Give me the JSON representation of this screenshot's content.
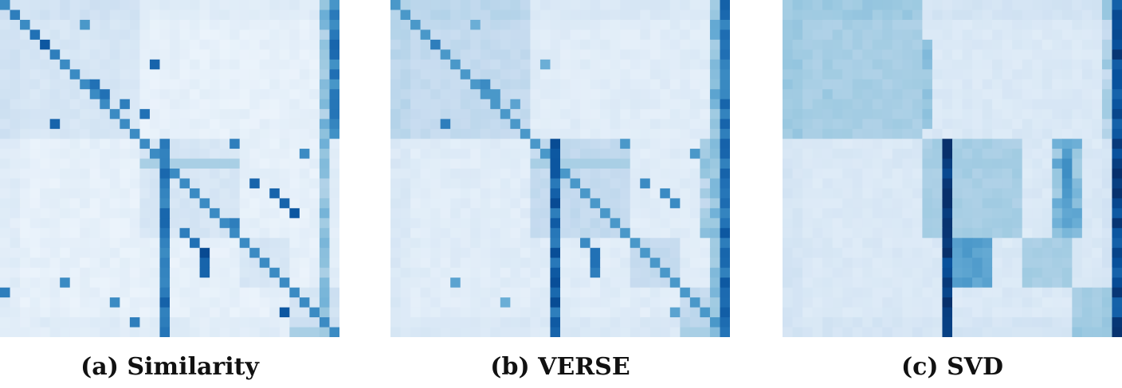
{
  "figure": {
    "captions": [
      "(a) Similarity",
      "(b) VERSE",
      "(c) SVD"
    ]
  },
  "chart_data": [
    {
      "type": "heatmap",
      "title": "(a) Similarity",
      "n": 34,
      "colormap": "Blues",
      "ylim": [
        0,
        1
      ],
      "grid": false,
      "communities": [
        [
          0,
          14
        ],
        [
          14,
          24
        ],
        [
          24,
          29
        ],
        [
          29,
          34
        ]
      ],
      "hubs": [
        0,
        1,
        32,
        33
      ],
      "background": 0.06,
      "block_within": 0.08,
      "hub_rows": {
        "16": 0.85,
        "32": 0.55,
        "33": 0.85
      },
      "diagonal": 0.65,
      "vertical_bands": [
        {
          "col": 16,
          "rows": [
            14,
            34
          ],
          "value": 0.75
        },
        {
          "col": 33,
          "rows": [
            0,
            14
          ],
          "value": 0.7
        },
        {
          "col": 32,
          "rows": [
            0,
            34
          ],
          "value": 0.4
        }
      ],
      "highlights": [
        {
          "r": 1,
          "c": 1,
          "v": 0.7
        },
        {
          "r": 2,
          "c": 8,
          "v": 0.6
        },
        {
          "r": 3,
          "c": 3,
          "v": 0.75
        },
        {
          "r": 4,
          "c": 4,
          "v": 0.85
        },
        {
          "r": 5,
          "c": 5,
          "v": 0.7
        },
        {
          "r": 6,
          "c": 15,
          "v": 0.8
        },
        {
          "r": 8,
          "c": 9,
          "v": 0.75
        },
        {
          "r": 9,
          "c": 10,
          "v": 0.75
        },
        {
          "r": 10,
          "c": 12,
          "v": 0.7
        },
        {
          "r": 11,
          "c": 14,
          "v": 0.75
        },
        {
          "r": 12,
          "c": 5,
          "v": 0.8
        },
        {
          "r": 14,
          "c": 23,
          "v": 0.7
        },
        {
          "r": 15,
          "c": 30,
          "v": 0.65
        },
        {
          "r": 18,
          "c": 25,
          "v": 0.8
        },
        {
          "r": 19,
          "c": 27,
          "v": 0.8
        },
        {
          "r": 20,
          "c": 28,
          "v": 0.8
        },
        {
          "r": 21,
          "c": 29,
          "v": 0.85
        },
        {
          "r": 22,
          "c": 23,
          "v": 0.7
        },
        {
          "r": 23,
          "c": 18,
          "v": 0.7
        },
        {
          "r": 24,
          "c": 19,
          "v": 0.75
        },
        {
          "r": 25,
          "c": 20,
          "v": 0.9
        },
        {
          "r": 26,
          "c": 20,
          "v": 0.8
        },
        {
          "r": 27,
          "c": 20,
          "v": 0.8
        },
        {
          "r": 28,
          "c": 6,
          "v": 0.65
        },
        {
          "r": 29,
          "c": 0,
          "v": 0.7
        },
        {
          "r": 30,
          "c": 11,
          "v": 0.65
        },
        {
          "r": 31,
          "c": 28,
          "v": 0.85
        },
        {
          "r": 32,
          "c": 13,
          "v": 0.7
        }
      ]
    },
    {
      "type": "heatmap",
      "title": "(b) VERSE",
      "n": 34,
      "colormap": "Blues",
      "ylim": [
        0,
        1
      ],
      "grid": false,
      "communities": [
        [
          0,
          14
        ],
        [
          14,
          24
        ],
        [
          24,
          29
        ],
        [
          29,
          34
        ]
      ],
      "hubs": [
        0,
        1,
        32,
        33
      ],
      "background": 0.09,
      "block_within": 0.14,
      "hub_rows": {
        "16": 0.85,
        "32": 0.6,
        "33": 0.85
      },
      "diagonal": 0.6,
      "vertical_bands": [
        {
          "col": 16,
          "rows": [
            14,
            34
          ],
          "value": 0.8
        },
        {
          "col": 33,
          "rows": [
            0,
            34
          ],
          "value": 0.75
        },
        {
          "col": 32,
          "rows": [
            0,
            34
          ],
          "value": 0.45
        },
        {
          "col": 31,
          "rows": [
            14,
            24
          ],
          "value": 0.35
        }
      ],
      "highlights": [
        {
          "r": 1,
          "c": 1,
          "v": 0.6
        },
        {
          "r": 2,
          "c": 8,
          "v": 0.5
        },
        {
          "r": 3,
          "c": 3,
          "v": 0.6
        },
        {
          "r": 4,
          "c": 4,
          "v": 0.7
        },
        {
          "r": 6,
          "c": 15,
          "v": 0.5
        },
        {
          "r": 8,
          "c": 9,
          "v": 0.65
        },
        {
          "r": 9,
          "c": 10,
          "v": 0.6
        },
        {
          "r": 10,
          "c": 12,
          "v": 0.55
        },
        {
          "r": 12,
          "c": 5,
          "v": 0.7
        },
        {
          "r": 14,
          "c": 23,
          "v": 0.6
        },
        {
          "r": 15,
          "c": 30,
          "v": 0.6
        },
        {
          "r": 18,
          "c": 25,
          "v": 0.65
        },
        {
          "r": 19,
          "c": 27,
          "v": 0.65
        },
        {
          "r": 20,
          "c": 28,
          "v": 0.65
        },
        {
          "r": 24,
          "c": 19,
          "v": 0.65
        },
        {
          "r": 25,
          "c": 20,
          "v": 0.75
        },
        {
          "r": 26,
          "c": 20,
          "v": 0.75
        },
        {
          "r": 27,
          "c": 20,
          "v": 0.7
        },
        {
          "r": 28,
          "c": 6,
          "v": 0.55
        },
        {
          "r": 30,
          "c": 11,
          "v": 0.5
        },
        {
          "r": 31,
          "c": 28,
          "v": 0.55
        }
      ]
    },
    {
      "type": "heatmap",
      "title": "(c) SVD",
      "n": 34,
      "colormap": "Blues",
      "ylim": [
        0,
        1
      ],
      "grid": false,
      "communities": [
        [
          0,
          14
        ],
        [
          14,
          24
        ],
        [
          24,
          29
        ],
        [
          29,
          34
        ]
      ],
      "hubs": [
        0,
        1,
        32,
        33
      ],
      "background": 0.12,
      "block_within": 0.2,
      "hub_rows": {
        "16": 0.9,
        "32": 0.55,
        "33": 0.95
      },
      "diagonal": 0.2,
      "vertical_bands": [
        {
          "col": 16,
          "rows": [
            14,
            34
          ],
          "value": 0.95
        },
        {
          "col": 33,
          "rows": [
            0,
            34
          ],
          "value": 0.9
        },
        {
          "col": 32,
          "rows": [
            0,
            14
          ],
          "value": 0.3
        },
        {
          "col": 27,
          "rows": [
            14,
            24
          ],
          "value": 0.45
        },
        {
          "col": 28,
          "rows": [
            14,
            24
          ],
          "value": 0.55
        },
        {
          "col": 29,
          "rows": [
            14,
            24
          ],
          "value": 0.45
        }
      ],
      "blocks": [
        {
          "rows": [
            24,
            29
          ],
          "cols": [
            17,
            21
          ],
          "value": 0.55
        },
        {
          "rows": [
            4,
            13
          ],
          "cols": [
            4,
            5
          ],
          "value": 0.35
        },
        {
          "rows": [
            4,
            13
          ],
          "cols": [
            14,
            15
          ],
          "value": 0.4
        }
      ],
      "highlights": []
    }
  ]
}
